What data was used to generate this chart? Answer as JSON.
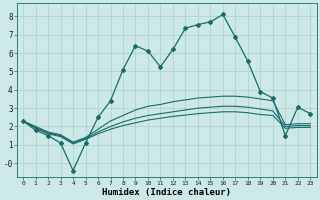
{
  "xlabel": "Humidex (Indice chaleur)",
  "xlim": [
    -0.5,
    23.5
  ],
  "ylim": [
    -0.75,
    8.7
  ],
  "xticks": [
    0,
    1,
    2,
    3,
    4,
    5,
    6,
    7,
    8,
    9,
    10,
    11,
    12,
    13,
    14,
    15,
    16,
    17,
    18,
    19,
    20,
    21,
    22,
    23
  ],
  "yticks": [
    0,
    1,
    2,
    3,
    4,
    5,
    6,
    7,
    8
  ],
  "ytick_labels": [
    "-0",
    "1",
    "2",
    "3",
    "4",
    "5",
    "6",
    "7",
    "8"
  ],
  "bg_color": "#cce9e7",
  "grid_color": "#aacfcd",
  "line_color": "#1a6b68",
  "series_main": [
    2.3,
    1.8,
    1.5,
    1.1,
    -0.4,
    1.1,
    2.5,
    3.4,
    5.1,
    6.4,
    6.1,
    5.25,
    6.2,
    7.35,
    7.55,
    7.7,
    8.1,
    6.85,
    5.55,
    3.9,
    3.55,
    1.5,
    3.05,
    2.7
  ],
  "series_upper": [
    2.3,
    2.0,
    1.7,
    1.55,
    1.15,
    1.4,
    1.85,
    2.3,
    2.6,
    2.9,
    3.1,
    3.2,
    3.35,
    3.45,
    3.55,
    3.6,
    3.65,
    3.65,
    3.6,
    3.5,
    3.4,
    2.1,
    2.15,
    2.15
  ],
  "series_mid": [
    2.3,
    1.95,
    1.65,
    1.5,
    1.1,
    1.35,
    1.7,
    2.0,
    2.25,
    2.45,
    2.6,
    2.7,
    2.8,
    2.9,
    3.0,
    3.05,
    3.1,
    3.1,
    3.05,
    2.95,
    2.85,
    2.0,
    2.05,
    2.05
  ],
  "series_lower": [
    2.3,
    1.9,
    1.6,
    1.45,
    1.05,
    1.3,
    1.6,
    1.85,
    2.05,
    2.2,
    2.35,
    2.45,
    2.55,
    2.62,
    2.7,
    2.75,
    2.8,
    2.8,
    2.75,
    2.65,
    2.6,
    1.9,
    1.95,
    1.95
  ]
}
